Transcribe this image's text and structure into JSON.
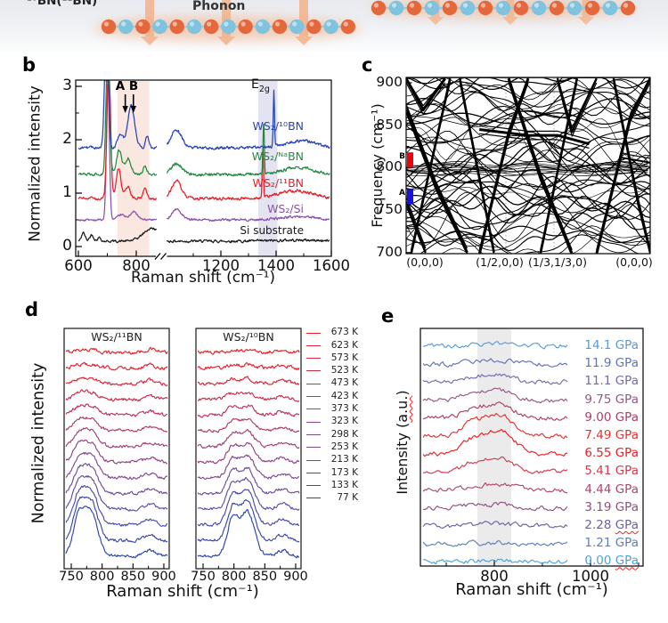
{
  "banner": {
    "label_left": "¹⁰BN(¹¹BN)",
    "phonon_label": "Phonon",
    "atom_color_a": "#e4683c",
    "atom_color_b": "#7fc3de",
    "bond_color": "#a9c6d4",
    "arrow_color": "#f3ae85",
    "glow_color": "#f19a62"
  },
  "chart_data": [
    {
      "id": "b",
      "type": "line",
      "panel_letter": "b",
      "xlabel": "Raman shift (cm⁻¹)",
      "ylabel": "Normalized intensity",
      "yticks": [
        0,
        1,
        2,
        3
      ],
      "yticks_minor": [
        0.5,
        1.5,
        2.5
      ],
      "xticks_segment1": [
        600,
        800
      ],
      "xticks_segment1_minor": [
        700
      ],
      "xticks_segment2": [
        1200,
        1400,
        1600
      ],
      "xticks_segment2_minor": [
        1100,
        1300,
        1500
      ],
      "xaxis_break": true,
      "ylim": [
        0,
        3.17
      ],
      "xrange_segment1": [
        600,
        872
      ],
      "xrange_segment2": [
        1005,
        1595
      ],
      "annotations": {
        "peak_a": "A",
        "peak_b": "B",
        "e2g_base": "E",
        "e2g_sub": "2g"
      },
      "annotation_arrow_positions_cm": [
        762,
        790
      ],
      "shaded_bands_cm": [
        {
          "segment": 1,
          "x1": 735,
          "x2": 845,
          "color": "#f9e7e0"
        },
        {
          "segment": 2,
          "x1": 1335,
          "x2": 1405,
          "color": "#e3e3f1"
        }
      ],
      "series": [
        {
          "label": "WS₂/¹⁰BN",
          "color": "#2744b8",
          "offset": 1.85,
          "noise": 0.022,
          "peaks": [
            [
              697,
              6,
              2.6
            ],
            [
              745,
              9,
              0.26
            ],
            [
              782,
              12,
              0.78
            ],
            [
              838,
              6,
              0.22
            ],
            [
              1039,
              19,
              0.33
            ],
            [
              1392,
              2.2,
              1.05
            ],
            [
              1490,
              55,
              0.13
            ]
          ]
        },
        {
          "label": "WS₂/ᴺᵃBN",
          "color": "#208b3f",
          "offset": 1.35,
          "noise": 0.022,
          "peaks": [
            [
              702,
              6,
              2.5
            ],
            [
              741,
              9,
              0.45
            ],
            [
              772,
              10,
              0.3
            ],
            [
              830,
              7,
              0.15
            ],
            [
              1039,
              19,
              0.2
            ],
            [
              1355,
              2.2,
              0.98
            ],
            [
              1480,
              55,
              0.13
            ]
          ]
        },
        {
          "label": "WS₂/¹¹BN",
          "color": "#ed1c24",
          "offset": 0.9,
          "noise": 0.022,
          "peaks": [
            [
              705,
              6,
              2.6
            ],
            [
              739,
              8,
              0.55
            ],
            [
              770,
              9,
              0.22
            ],
            [
              830,
              6,
              0.2
            ],
            [
              1039,
              17,
              0.33
            ],
            [
              1352,
              2.2,
              0.95
            ],
            [
              1470,
              60,
              0.15
            ]
          ]
        },
        {
          "label": "WS₂/Si",
          "color": "#8a52a8",
          "offset": 0.5,
          "noise": 0.018,
          "peaks": [
            [
              702,
              5,
              2.7
            ],
            [
              748,
              10,
              0.1
            ],
            [
              790,
              13,
              0.15
            ],
            [
              1039,
              17,
              0.2
            ],
            [
              1480,
              60,
              0.06
            ]
          ]
        },
        {
          "label": "Si substrate",
          "color": "#1a1a1a",
          "offset": 0.1,
          "noise": 0.02,
          "peaks": [
            [
              617,
              6,
              0.16
            ],
            [
              646,
              7,
              0.12
            ],
            [
              672,
              6,
              0.07
            ],
            [
              855,
              30,
              0.24
            ],
            [
              1480,
              80,
              0.02
            ]
          ]
        }
      ]
    },
    {
      "id": "c",
      "type": "line",
      "panel_letter": "c",
      "ylabel": "Frequency (cm⁻¹)",
      "ylim": [
        698,
        907
      ],
      "yticks": [
        700,
        750,
        800,
        850,
        900
      ],
      "yticks_minor": [
        725,
        775,
        825,
        875
      ],
      "xtick_labels": [
        "(0,0,0)",
        "(1/2,0,0)",
        "(1/3,1/3,0)",
        "(0,0,0)"
      ],
      "line_color": "#000000",
      "markers": [
        {
          "label": "B",
          "color": "#ee0010",
          "freq_range": [
            800,
            818
          ]
        },
        {
          "label": "A",
          "color": "#1a10e0",
          "freq_range": [
            757,
            775
          ]
        }
      ]
    },
    {
      "id": "d",
      "type": "line",
      "panel_letter": "d",
      "ylabel": "Normalized intensity",
      "xlabel": "Raman shift (cm⁻¹)",
      "xticks": [
        750,
        800,
        850,
        900
      ],
      "xticks_minor": [
        775,
        825,
        875
      ],
      "xrange": [
        740,
        910
      ],
      "subplots": [
        {
          "title": "WS₂/¹¹BN",
          "peak_centers_cm": [
            762,
            782
          ]
        },
        {
          "title": "WS₂/¹⁰BN",
          "peak_centers_cm": [
            798,
            822
          ]
        }
      ],
      "temperatures": [
        {
          "label": "673 K",
          "color": "#ee1c25",
          "amplitude": 3
        },
        {
          "label": "623 K",
          "color": "#e52030",
          "amplitude": 4
        },
        {
          "label": "573 K",
          "color": "#da253d",
          "amplitude": 6
        },
        {
          "label": "523 K",
          "color": "#cd2b4b",
          "amplitude": 8
        },
        {
          "label": "473 K",
          "color": "#bf3259",
          "amplitude": 11
        },
        {
          "label": "423 K",
          "color": "#b13867",
          "amplitude": 14
        },
        {
          "label": "373 K",
          "color": "#a23e76",
          "amplitude": 18
        },
        {
          "label": "323 K",
          "color": "#924384",
          "amplitude": 22
        },
        {
          "label": "298 K",
          "color": "#814892",
          "amplitude": 26
        },
        {
          "label": "253 K",
          "color": "#6f4c9d",
          "amplitude": 30
        },
        {
          "label": "213 K",
          "color": "#5d4ea6",
          "amplitude": 35
        },
        {
          "label": "173 K",
          "color": "#4a4caa",
          "amplitude": 40
        },
        {
          "label": "133 K",
          "color": "#3a48ab",
          "amplitude": 46
        },
        {
          "label": "77 K",
          "color": "#2d43a8",
          "amplitude": 52
        }
      ]
    },
    {
      "id": "e",
      "type": "line",
      "panel_letter": "e",
      "ylabel_pre": "Intensity (",
      "ylabel_squiggle": "a.u.",
      "ylabel_post": ")",
      "xlabel": "Raman shift (cm⁻¹)",
      "xticks": [
        800,
        1000
      ],
      "xticks_minor": [
        700,
        900,
        1100
      ],
      "shaded_band_cm": [
        765,
        835
      ],
      "pressures": [
        {
          "value": "14.1",
          "unit": "GPa",
          "color": "#5b9bd5",
          "amplitude": 2,
          "squiggle": false
        },
        {
          "value": "11.9",
          "unit": "GPa",
          "color": "#5f74b8",
          "amplitude": 4,
          "squiggle": false
        },
        {
          "value": "11.1",
          "unit": "GPa",
          "color": "#7a68ac",
          "amplitude": 9,
          "squiggle": false
        },
        {
          "value": "9.75",
          "unit": "GPa",
          "color": "#955884",
          "amplitude": 11,
          "squiggle": false
        },
        {
          "value": "9.00",
          "unit": "GPa",
          "color": "#aa4260",
          "amplitude": 16,
          "squiggle": false
        },
        {
          "value": "7.49",
          "unit": "GPa",
          "color": "#e03535",
          "amplitude": 24,
          "squiggle": false
        },
        {
          "value": "6.55",
          "unit": "GPa",
          "color": "#ee1d24",
          "amplitude": 26,
          "squiggle": false
        },
        {
          "value": "5.41",
          "unit": "GPa",
          "color": "#d63a4a",
          "amplitude": 15,
          "squiggle": false
        },
        {
          "value": "4.44",
          "unit": "GPa",
          "color": "#b34565",
          "amplitude": 7,
          "squiggle": false
        },
        {
          "value": "3.19",
          "unit": "GPa",
          "color": "#8f4f82",
          "amplitude": 4,
          "squiggle": false
        },
        {
          "value": "2.28",
          "unit": "GPa",
          "color": "#6f5fa5",
          "amplitude": 2,
          "squiggle": true
        },
        {
          "value": "1.21",
          "unit": "GPa",
          "color": "#5b7ec0",
          "amplitude": 1.5,
          "squiggle": false
        },
        {
          "value": "0.00",
          "unit": "GPa",
          "color": "#4da2dc",
          "amplitude": 1.5,
          "squiggle": true
        }
      ]
    }
  ]
}
